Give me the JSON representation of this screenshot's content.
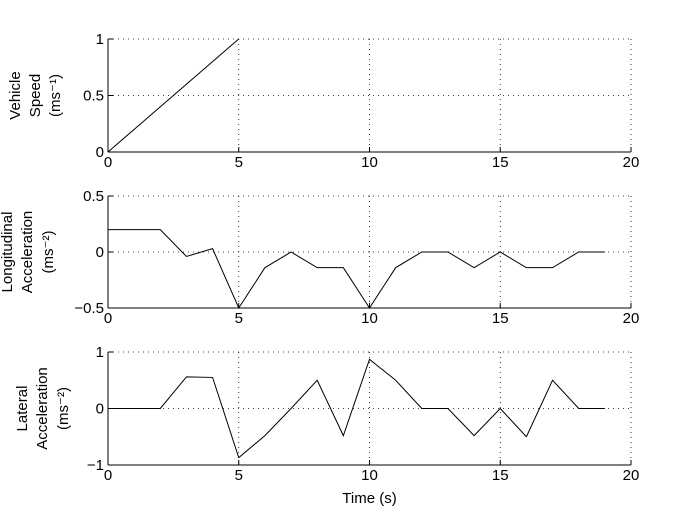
{
  "chart_data": [
    {
      "type": "line",
      "ylabel": [
        "Vehicle",
        "Speed",
        "(ms⁻¹)"
      ],
      "xlabel": "",
      "xlim": [
        0,
        20
      ],
      "ylim": [
        0,
        1
      ],
      "xticks": [
        0,
        5,
        10,
        15,
        20
      ],
      "yticks": [
        0,
        0.5,
        1
      ],
      "xtick_labels": [
        "0",
        "5",
        "10",
        "15",
        "20"
      ],
      "ytick_labels": [
        "0",
        "0.5",
        "1"
      ],
      "grid": true,
      "series": [
        {
          "x": [
            0,
            5
          ],
          "y": [
            0,
            1
          ]
        }
      ]
    },
    {
      "type": "line",
      "ylabel": [
        "Longitudinal",
        "Acceleration",
        "(ms⁻²)"
      ],
      "xlabel": "",
      "xlim": [
        0,
        20
      ],
      "ylim": [
        -0.5,
        0.5
      ],
      "xticks": [
        0,
        5,
        10,
        15,
        20
      ],
      "yticks": [
        -0.5,
        0,
        0.5
      ],
      "xtick_labels": [
        "0",
        "5",
        "10",
        "15",
        "20"
      ],
      "ytick_labels": [
        "−0.5",
        "0",
        "0.5"
      ],
      "grid": true,
      "series": [
        {
          "x": [
            0,
            1,
            2,
            3,
            4,
            5,
            6,
            7,
            8,
            9,
            10,
            11,
            12,
            13,
            14,
            15,
            16,
            17,
            18,
            19
          ],
          "y": [
            0.2,
            0.2,
            0.2,
            -0.04,
            0.03,
            -0.5,
            -0.14,
            0,
            -0.14,
            -0.14,
            -0.5,
            -0.14,
            0,
            0,
            -0.14,
            0,
            -0.14,
            -0.14,
            0,
            0
          ]
        }
      ]
    },
    {
      "type": "line",
      "ylabel": [
        "Lateral",
        "Acceleration",
        "(ms⁻²)"
      ],
      "xlabel": "Time (s)",
      "xlim": [
        0,
        20
      ],
      "ylim": [
        -1,
        1
      ],
      "xticks": [
        0,
        5,
        10,
        15,
        20
      ],
      "yticks": [
        -1,
        0,
        1
      ],
      "xtick_labels": [
        "0",
        "5",
        "10",
        "15",
        "20"
      ],
      "ytick_labels": [
        "−1",
        "0",
        "1"
      ],
      "grid": true,
      "series": [
        {
          "x": [
            0,
            1,
            2,
            3,
            4,
            5,
            6,
            7,
            8,
            9,
            10,
            11,
            12,
            13,
            14,
            15,
            16,
            17,
            18,
            19
          ],
          "y": [
            0,
            0,
            0,
            0.56,
            0.55,
            -0.87,
            -0.48,
            0,
            0.5,
            -0.48,
            0.87,
            0.5,
            0,
            0,
            -0.48,
            0,
            -0.5,
            0.5,
            0,
            0
          ]
        }
      ]
    }
  ]
}
